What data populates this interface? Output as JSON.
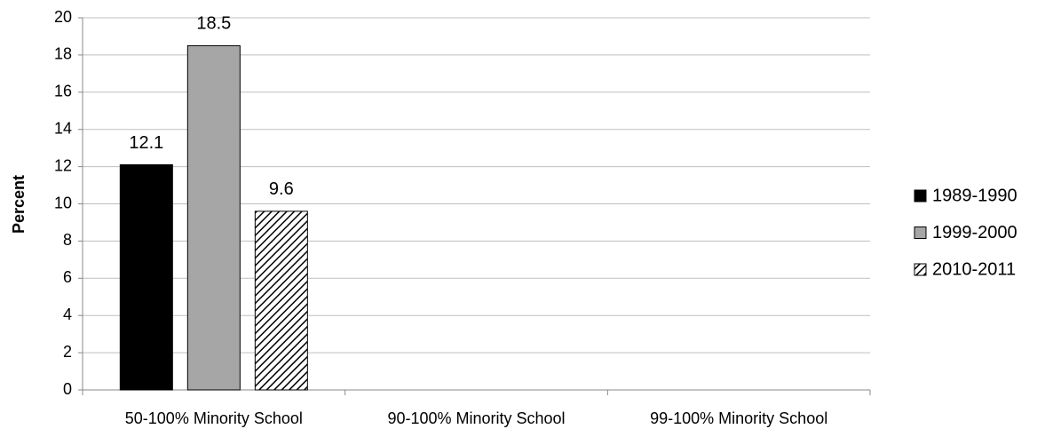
{
  "chart_data": {
    "type": "bar",
    "y_label": "Percent",
    "categories": [
      "50-100% Minority School",
      "90-100% Minority School",
      "99-100% Minority School"
    ],
    "series": [
      {
        "name": "1989-1990",
        "color": "#000000",
        "values": [
          12.1,
          null,
          null
        ]
      },
      {
        "name": "1999-2000",
        "color": "#a6a6a6",
        "values": [
          18.5,
          null,
          null
        ]
      },
      {
        "name": "2010-2011",
        "color": "#ffffff",
        "pattern": "diagonal-hatch",
        "values": [
          9.6,
          null,
          null
        ]
      }
    ],
    "ylim": [
      0,
      20
    ],
    "yticks": [
      0,
      2,
      4,
      6,
      8,
      10,
      12,
      14,
      16,
      18,
      20
    ],
    "grid": true,
    "legend": "right",
    "data_labels": true
  }
}
